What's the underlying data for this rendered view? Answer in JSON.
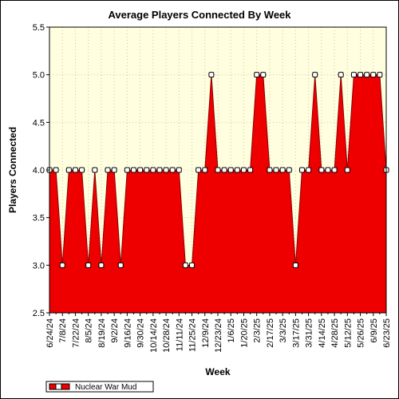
{
  "chart_data": {
    "type": "area",
    "title": "Average Players Connected By Week",
    "xlabel": "Week",
    "ylabel": "Players Connected",
    "ylim": [
      2.5,
      5.5
    ],
    "y_ticks": [
      "2.5",
      "3.0",
      "3.5",
      "4.0",
      "4.5",
      "5.0",
      "5.5"
    ],
    "x_tick_labels": [
      "6/24/24",
      "7/8/24",
      "7/22/24",
      "8/5/24",
      "8/19/24",
      "9/2/24",
      "9/16/24",
      "9/30/24",
      "10/14/24",
      "10/28/24",
      "11/11/24",
      "11/25/24",
      "12/9/24",
      "12/23/24",
      "1/6/25",
      "1/20/25",
      "2/3/25",
      "2/17/25",
      "3/3/25",
      "3/17/25",
      "3/31/25",
      "4/14/25",
      "4/28/25",
      "5/12/25",
      "5/26/25",
      "6/9/25",
      "6/23/25"
    ],
    "grid": true,
    "legend_position": "bottom-left",
    "colors": {
      "fill": "#ee0000",
      "line": "#8b0000",
      "background": "#ffffe0",
      "grid": "#c8c8a0"
    },
    "series": [
      {
        "name": "Nuclear War Mud",
        "x": [
          "6/24/24",
          "7/1/24",
          "7/8/24",
          "7/15/24",
          "7/22/24",
          "7/29/24",
          "8/5/24",
          "8/12/24",
          "8/19/24",
          "8/26/24",
          "9/2/24",
          "9/9/24",
          "9/16/24",
          "9/23/24",
          "9/30/24",
          "10/7/24",
          "10/14/24",
          "10/21/24",
          "10/28/24",
          "11/4/24",
          "11/11/24",
          "11/18/24",
          "11/25/24",
          "12/2/24",
          "12/9/24",
          "12/16/24",
          "12/23/24",
          "12/30/24",
          "1/6/25",
          "1/13/25",
          "1/20/25",
          "1/27/25",
          "2/3/25",
          "2/10/25",
          "2/17/25",
          "2/24/25",
          "3/3/25",
          "3/10/25",
          "3/17/25",
          "3/24/25",
          "3/31/25",
          "4/7/25",
          "4/14/25",
          "4/21/25",
          "4/28/25",
          "5/5/25",
          "5/12/25",
          "5/19/25",
          "5/26/25",
          "6/2/25",
          "6/9/25",
          "6/16/25",
          "6/23/25"
        ],
        "values": [
          4.0,
          4.0,
          3.0,
          4.0,
          4.0,
          4.0,
          3.0,
          4.0,
          3.0,
          4.0,
          4.0,
          3.0,
          4.0,
          4.0,
          4.0,
          4.0,
          4.0,
          4.0,
          4.0,
          4.0,
          4.0,
          3.0,
          3.0,
          4.0,
          4.0,
          5.0,
          4.0,
          4.0,
          4.0,
          4.0,
          4.0,
          4.0,
          5.0,
          5.0,
          4.0,
          4.0,
          4.0,
          4.0,
          3.0,
          4.0,
          4.0,
          5.0,
          4.0,
          4.0,
          4.0,
          5.0,
          4.0,
          5.0,
          5.0,
          5.0,
          5.0,
          5.0,
          4.0
        ]
      }
    ]
  }
}
